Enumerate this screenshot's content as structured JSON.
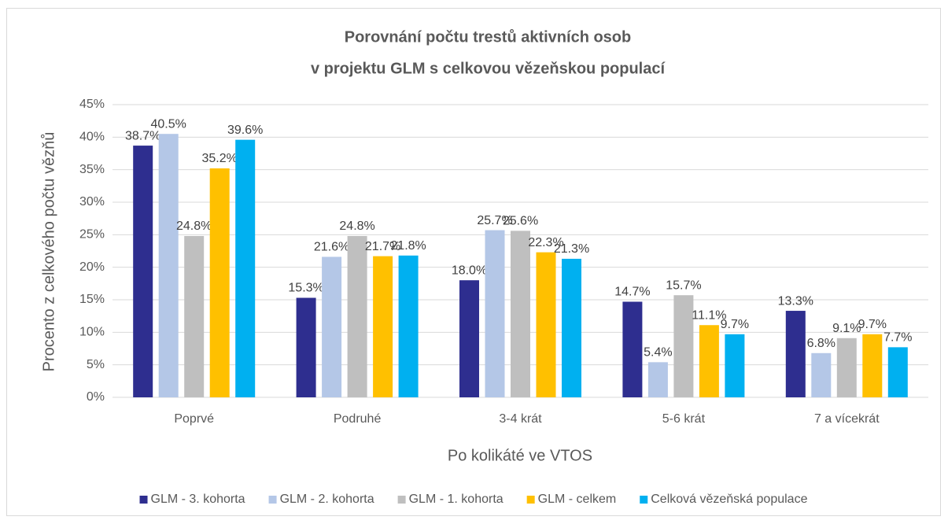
{
  "chart_data": {
    "type": "bar",
    "title": [
      "Porovnání počtu trestů aktivních osob",
      "v projektu GLM s celkovou vězeňskou populací"
    ],
    "x_label": "Po kolikáté ve VTOS",
    "y_label": "Procento z celkového počtu vězňů",
    "categories": [
      "Poprvé",
      "Podruhé",
      "3-4 krát",
      "5-6 krát",
      "7 a vícekrát"
    ],
    "series": [
      {
        "name": "GLM - 3. kohorta",
        "color": "#2e2e8f",
        "values": [
          38.7,
          15.3,
          18.0,
          14.7,
          13.3
        ],
        "value_labels": [
          "38.7%",
          "15.3%",
          "18.0%",
          "14.7%",
          "13.3%"
        ]
      },
      {
        "name": "GLM - 2. kohorta",
        "color": "#b4c7e7",
        "values": [
          40.5,
          21.6,
          25.7,
          5.4,
          6.8
        ],
        "value_labels": [
          "40.5%",
          "21.6%",
          "25.7%",
          "5.4%",
          "6.8%"
        ]
      },
      {
        "name": "GLM - 1. kohorta",
        "color": "#bfbfbf",
        "values": [
          24.8,
          24.8,
          25.6,
          15.7,
          9.1
        ],
        "value_labels": [
          "24.8%",
          "24.8%",
          "25.6%",
          "15.7%",
          "9.1%"
        ]
      },
      {
        "name": "GLM - celkem",
        "color": "#ffc000",
        "values": [
          35.2,
          21.7,
          22.3,
          11.1,
          9.7
        ],
        "value_labels": [
          "35.2%",
          "21.7%",
          "22.3%",
          "11.1%",
          "9.7%"
        ]
      },
      {
        "name": "Celková vězeňská populace",
        "color": "#00b0f0",
        "values": [
          39.6,
          21.8,
          21.3,
          9.7,
          7.7
        ],
        "value_labels": [
          "39.6%",
          "21.8%",
          "21.3%",
          "9.7%",
          "7.7%"
        ]
      }
    ],
    "ylim": [
      0,
      45
    ],
    "yticks": [
      {
        "value": 0,
        "label": "0%"
      },
      {
        "value": 5,
        "label": "5%"
      },
      {
        "value": 10,
        "label": "10%"
      },
      {
        "value": 15,
        "label": "15%"
      },
      {
        "value": 20,
        "label": "20%"
      },
      {
        "value": 25,
        "label": "25%"
      },
      {
        "value": 30,
        "label": "30%"
      },
      {
        "value": 35,
        "label": "35%"
      },
      {
        "value": 40,
        "label": "40%"
      },
      {
        "value": 45,
        "label": "45%"
      }
    ],
    "grid": true,
    "legend": "bottom"
  }
}
